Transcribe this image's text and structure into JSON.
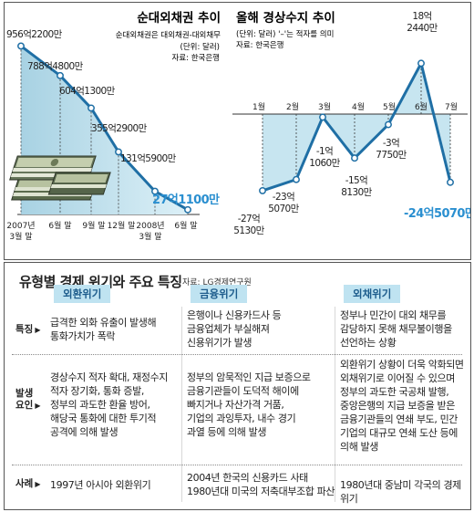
{
  "chart_data": [
    {
      "type": "area",
      "title": "순대외채권 추이",
      "subtitle": "순대외채권은 대외채권-대외채무",
      "unit": "(단위: 달러)",
      "source": "자료: 한국은행",
      "categories": [
        "2007년 3월 말",
        "6월 말",
        "9월 말",
        "12월 말",
        "2008년 3월 말",
        "6월 말"
      ],
      "tick_labels": [
        [
          "2007년",
          "3월 말"
        ],
        [
          "6월 말"
        ],
        [
          "9월 말"
        ],
        [
          "12월 말"
        ],
        [
          "2008년",
          "3월 말"
        ],
        [
          "6월 말"
        ]
      ],
      "values": [
        956.22,
        788.48,
        604.13,
        355.29,
        131.59,
        27.11
      ],
      "value_labels": [
        "956억2200만",
        "788억4800만",
        "604억1300만",
        "355억2900만",
        "131억5900만",
        "27억1100만"
      ],
      "ylim": [
        0,
        1000
      ],
      "colors": {
        "fill": "#bfe0ec",
        "line": "#1f6fa5",
        "highlight": "#2a8fd0"
      }
    },
    {
      "type": "line",
      "title": "올해 경상수지 추이",
      "subtitle": "(단위: 달러)  '–'는 적자를 의미",
      "source": "자료: 한국은행",
      "categories": [
        "1월",
        "2월",
        "3월",
        "4월",
        "5월",
        "6월",
        "7월"
      ],
      "values": [
        -27.513,
        -23.507,
        -1.106,
        -15.813,
        -3.775,
        18.244,
        -24.507
      ],
      "value_labels": [
        [
          "-27억",
          "5130만"
        ],
        [
          "-23억",
          "5070만"
        ],
        [
          "-1억",
          "1060만"
        ],
        [
          "-15억",
          "8130만"
        ],
        [
          "-3억",
          "7750만"
        ],
        [
          "18억",
          "2440만"
        ],
        [
          "-24억5070만"
        ]
      ],
      "ylim": [
        -30,
        20
      ],
      "zero_line": true,
      "colors": {
        "fill": "#bfe0ec",
        "line": "#1f6fa5",
        "highlight": "#2a8fd0"
      }
    }
  ],
  "table": {
    "title": "유형별 경제 위기와 주요 특징",
    "source": "자료: LG경제연구원",
    "columns": [
      "외환위기",
      "금융위기",
      "외채위기"
    ],
    "rows": [
      {
        "label": "특징",
        "cells": [
          "급격한 외화 유출이 발생해\n통화가치가 폭락",
          "은행이나 신용카드사 등\n금융업체가 부실해져\n신용위기가 발생",
          "정부나 민간이 대외 채무를\n감당하지 못해 채무불이행을\n선언하는 상황"
        ]
      },
      {
        "label": "발생\n요인",
        "cells": [
          "경상수지 적자 확대, 재정수지\n적자 장기화, 통화 증발,\n정부의 과도한 환율 방어,\n해당국 통화에 대한 투기적\n공격에 의해 발생",
          "정부의 암묵적인 지급 보증으로\n금융기관들이 도덕적 해이에\n빠지거나 자산가격 거품,\n기업의 과잉투자, 내수 경기\n과열 등에 의해 발생",
          "외환위기 상황이 더욱 악화되면\n외채위기로 이어질 수 있으며\n정부의 과도한 국공채 발행,\n중앙은행의 지급 보증을 받은\n금융기관들의 연쇄 부도, 민간\n기업의 대규모 연쇄 도산 등에\n의해 발생"
        ]
      },
      {
        "label": "사례",
        "cells": [
          "1997년 아시아  외환위기",
          "2004년 한국의 신용카드 사태\n1980년대 미국의 저축대부조합 파산",
          "1980년대 중남미 각국의 경제 위기"
        ]
      }
    ],
    "colors": {
      "tag_bg": "#bfe3f1",
      "tag_text": "#1d5c8c"
    }
  }
}
